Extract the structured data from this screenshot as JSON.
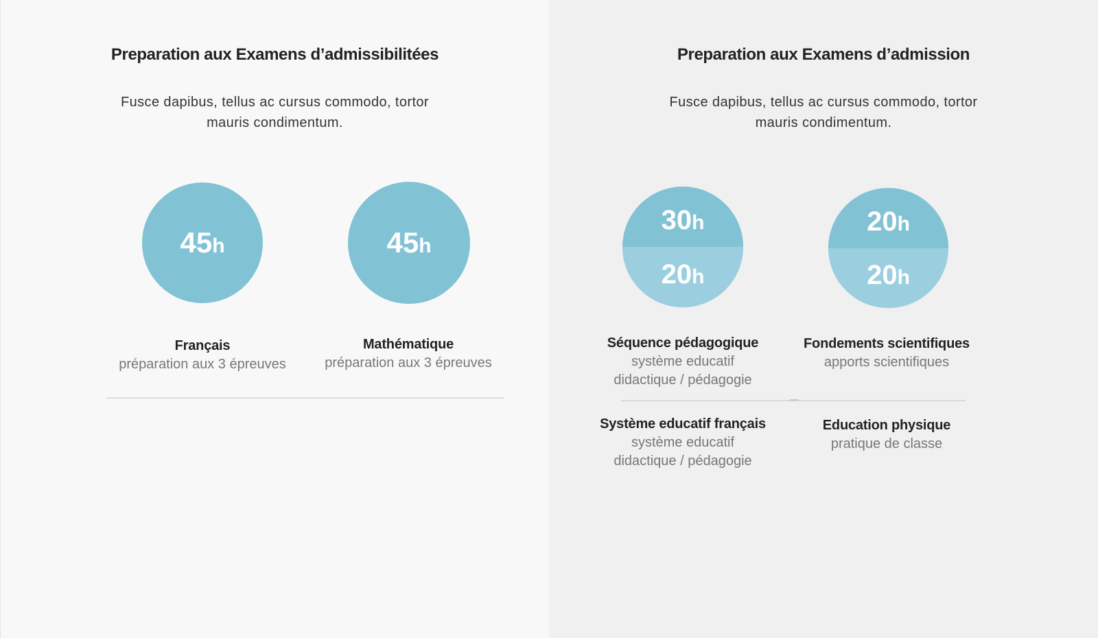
{
  "left": {
    "title": "Preparation aux Examens d’admissibilitées",
    "description": "Fusce dapibus, tellus ac cursus commodo, tortor mauris condimentum.",
    "subjects": [
      {
        "hours": "45",
        "unit": "h",
        "name": "Français",
        "detail": "préparation aux 3 épreuves"
      },
      {
        "hours": "45",
        "unit": "h",
        "name": "Mathématique",
        "detail": "préparation aux 3 épreuves"
      }
    ]
  },
  "right": {
    "title": "Preparation aux Examens d’admission",
    "description": "Fusce dapibus, tellus ac cursus commodo, tortor mauris condimentum.",
    "circles": [
      {
        "top_hours": "30",
        "bottom_hours": "20",
        "unit": "h"
      },
      {
        "top_hours": "20",
        "bottom_hours": "20",
        "unit": "h"
      }
    ],
    "subjects": [
      {
        "name": "Séquence pédagogique",
        "line1": "système educatif",
        "line2": "didactique / pédagogie"
      },
      {
        "name": "Fondements scientifiques",
        "line1": "apports scientifiques"
      },
      {
        "name": "Système educatif français",
        "line1": "système educatif",
        "line2": "didactique / pédagogie"
      },
      {
        "name": "Education physique",
        "line1": "pratique de classe"
      }
    ]
  },
  "colors": {
    "circle": "#82c2d5",
    "circle_light": "#9bcfdf",
    "left_bg": "#f8f8f8",
    "right_bg": "#f0f0f0"
  }
}
